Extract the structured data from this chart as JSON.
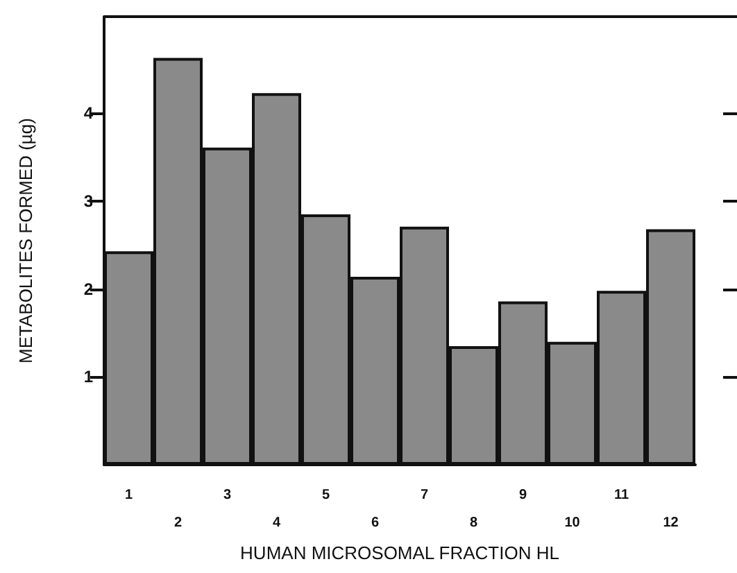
{
  "chart_data": {
    "type": "bar",
    "xlabel": "HUMAN MICROSOMAL FRACTION HL",
    "ylabel": "METABOLITES FORMED (µg)",
    "categories": [
      "1",
      "2",
      "3",
      "4",
      "5",
      "6",
      "7",
      "8",
      "9",
      "10",
      "11",
      "12"
    ],
    "values": [
      2.43,
      4.63,
      3.61,
      4.23,
      2.85,
      2.14,
      2.71,
      1.35,
      1.86,
      1.4,
      1.98,
      2.68
    ],
    "color": "#8a8a8a",
    "ylim": [
      0,
      5.1
    ],
    "yticks": [
      1,
      2,
      3,
      4
    ],
    "grid": false
  }
}
